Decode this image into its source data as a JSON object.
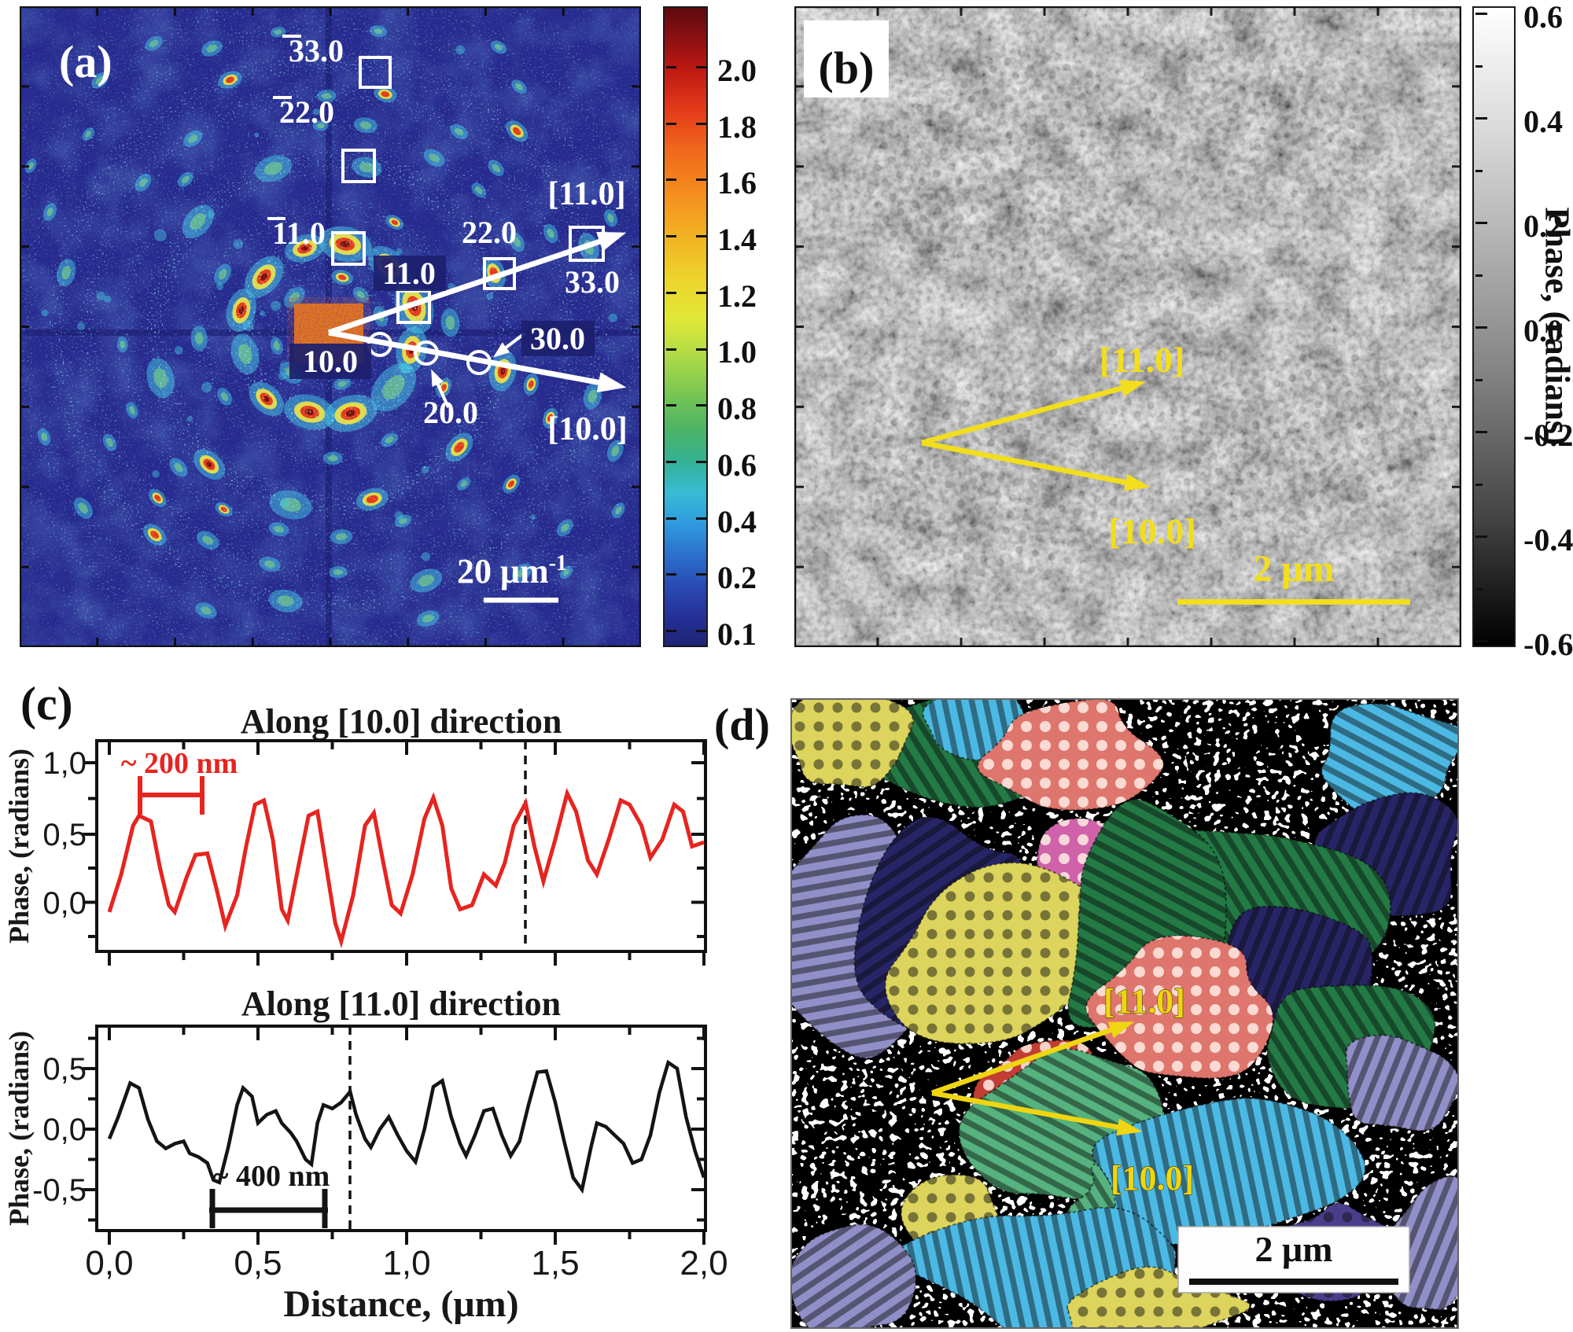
{
  "figure_bg": "#ffffff",
  "panel_a": {
    "label": "(a)",
    "bg_color": "#272a8e",
    "scale_bar_text": "20 μm",
    "scale_bar_exp": "-1",
    "labels": {
      "m11": "11.0",
      "m22": "22.0",
      "m33": "33.0",
      "p11": "11.0",
      "p22": "22.0",
      "p33": "33.0",
      "p10": "10.0",
      "p20": "20.0",
      "p30": "30.0",
      "dir11": "[11.0]",
      "dir10": "[10.0]"
    },
    "colorbar_ticks": [
      "2.0",
      "1.8",
      "1.6",
      "1.4",
      "1.2",
      "1.0",
      "0.8",
      "0.6",
      "0.4",
      "0.2",
      "0.1"
    ]
  },
  "panel_b": {
    "label": "(b)",
    "dir11": "[11.0]",
    "dir10": "[10.0]",
    "scale_bar": "2 μm",
    "accent": "#f2de1d",
    "colorbar_title": "Phase, (radians)",
    "colorbar_ticks": [
      "0.6",
      "0.4",
      "0.2",
      "0.0",
      "-0.2",
      "-0.4",
      "-0.6"
    ]
  },
  "panel_c": {
    "label": "(c)"
  },
  "panel_d": {
    "label": "(d)",
    "dir11": "[11.0]",
    "dir10": "[10.0]",
    "scale_bar": "2 μm",
    "palette": {
      "yellow": "#dcd45c",
      "seagreen": "#56b27e",
      "dkgreen": "#237a45",
      "skyblue": "#4cb9e4",
      "blue": "#2f7fc1",
      "navy": "#272566",
      "periwinkle": "#918fc7",
      "red": "#c23e34",
      "salmon": "#de766d",
      "magenta": "#cf62a9",
      "dkpurple": "#4a3d8c"
    }
  },
  "chart_data": [
    {
      "type": "line",
      "title": "Along [10.0] direction",
      "ylabel": "Phase, (radians)",
      "xlabel": "Distance, (μm)",
      "color": "#e62420",
      "xlim": [
        0,
        2
      ],
      "ylim": [
        -0.35,
        1.16
      ],
      "yticks": [
        "1,0",
        "0,5",
        "0,0"
      ],
      "ytick_values": [
        1.0,
        0.5,
        0.0
      ],
      "annotation": "~ 200 nm",
      "annotation_span_um": 0.2,
      "dashed_line_x": 1.4,
      "x": [
        0,
        0.04,
        0.08,
        0.1,
        0.14,
        0.17,
        0.2,
        0.22,
        0.26,
        0.29,
        0.33,
        0.36,
        0.39,
        0.43,
        0.46,
        0.49,
        0.52,
        0.55,
        0.58,
        0.6,
        0.64,
        0.67,
        0.7,
        0.73,
        0.76,
        0.78,
        0.82,
        0.86,
        0.89,
        0.92,
        0.95,
        0.98,
        1.02,
        1.06,
        1.09,
        1.12,
        1.15,
        1.18,
        1.22,
        1.26,
        1.3,
        1.33,
        1.36,
        1.4,
        1.43,
        1.46,
        1.5,
        1.54,
        1.57,
        1.61,
        1.64,
        1.68,
        1.72,
        1.75,
        1.79,
        1.82,
        1.86,
        1.9,
        1.93,
        1.96,
        2.0
      ],
      "y": [
        -0.07,
        0.2,
        0.55,
        0.62,
        0.58,
        0.25,
        -0.02,
        -0.07,
        0.18,
        0.34,
        0.35,
        0.1,
        -0.17,
        0.05,
        0.4,
        0.7,
        0.73,
        0.45,
        -0.05,
        -0.13,
        0.3,
        0.62,
        0.65,
        0.25,
        -0.15,
        -0.28,
        0.05,
        0.55,
        0.64,
        0.3,
        -0.02,
        -0.08,
        0.2,
        0.6,
        0.75,
        0.55,
        0.1,
        -0.05,
        -0.02,
        0.2,
        0.12,
        0.28,
        0.55,
        0.71,
        0.4,
        0.15,
        0.45,
        0.78,
        0.65,
        0.3,
        0.2,
        0.45,
        0.73,
        0.7,
        0.55,
        0.32,
        0.45,
        0.7,
        0.65,
        0.4,
        0.43
      ]
    },
    {
      "type": "line",
      "title": "Along [11.0] direction",
      "ylabel": "Phase, (radians)",
      "xlabel": "Distance, (μm)",
      "color": "#141414",
      "xlim": [
        0,
        2
      ],
      "ylim": [
        -0.84,
        0.85
      ],
      "yticks": [
        "0,5",
        "0,0",
        "-0,5"
      ],
      "ytick_values": [
        0.5,
        0.0,
        -0.5
      ],
      "xticks": [
        "0,0",
        "0,5",
        "1,0",
        "1,5",
        "2,0"
      ],
      "xtick_values": [
        0,
        0.5,
        1.0,
        1.5,
        2.0
      ],
      "annotation": "~ 400 nm",
      "annotation_span_um": 0.4,
      "dashed_line_x": 0.8,
      "x": [
        0,
        0.03,
        0.07,
        0.1,
        0.13,
        0.16,
        0.19,
        0.22,
        0.25,
        0.27,
        0.3,
        0.33,
        0.35,
        0.37,
        0.4,
        0.43,
        0.45,
        0.48,
        0.5,
        0.53,
        0.56,
        0.58,
        0.61,
        0.63,
        0.66,
        0.68,
        0.7,
        0.72,
        0.75,
        0.78,
        0.81,
        0.83,
        0.86,
        0.88,
        0.91,
        0.94,
        0.97,
        1.0,
        1.03,
        1.06,
        1.09,
        1.12,
        1.15,
        1.18,
        1.2,
        1.23,
        1.26,
        1.29,
        1.32,
        1.35,
        1.38,
        1.41,
        1.44,
        1.47,
        1.5,
        1.53,
        1.56,
        1.59,
        1.62,
        1.64,
        1.67,
        1.7,
        1.73,
        1.76,
        1.79,
        1.82,
        1.85,
        1.88,
        1.91,
        1.94,
        1.97,
        2.0
      ],
      "y": [
        -0.08,
        0.1,
        0.38,
        0.34,
        0.08,
        -0.1,
        -0.16,
        -0.12,
        -0.1,
        -0.2,
        -0.23,
        -0.28,
        -0.42,
        -0.44,
        -0.15,
        0.2,
        0.34,
        0.27,
        0.05,
        0.12,
        0.15,
        0.05,
        -0.03,
        -0.1,
        -0.25,
        -0.29,
        0.05,
        0.2,
        0.17,
        0.22,
        0.31,
        0.12,
        -0.08,
        -0.15,
        0.0,
        0.1,
        -0.05,
        -0.18,
        -0.27,
        0.0,
        0.35,
        0.4,
        0.1,
        -0.12,
        -0.22,
        -0.05,
        0.15,
        0.17,
        -0.05,
        -0.22,
        -0.1,
        0.2,
        0.47,
        0.48,
        0.22,
        -0.1,
        -0.4,
        -0.5,
        -0.15,
        0.05,
        0.02,
        -0.05,
        -0.12,
        -0.28,
        -0.25,
        -0.05,
        0.3,
        0.55,
        0.5,
        0.1,
        -0.18,
        -0.4
      ]
    }
  ]
}
